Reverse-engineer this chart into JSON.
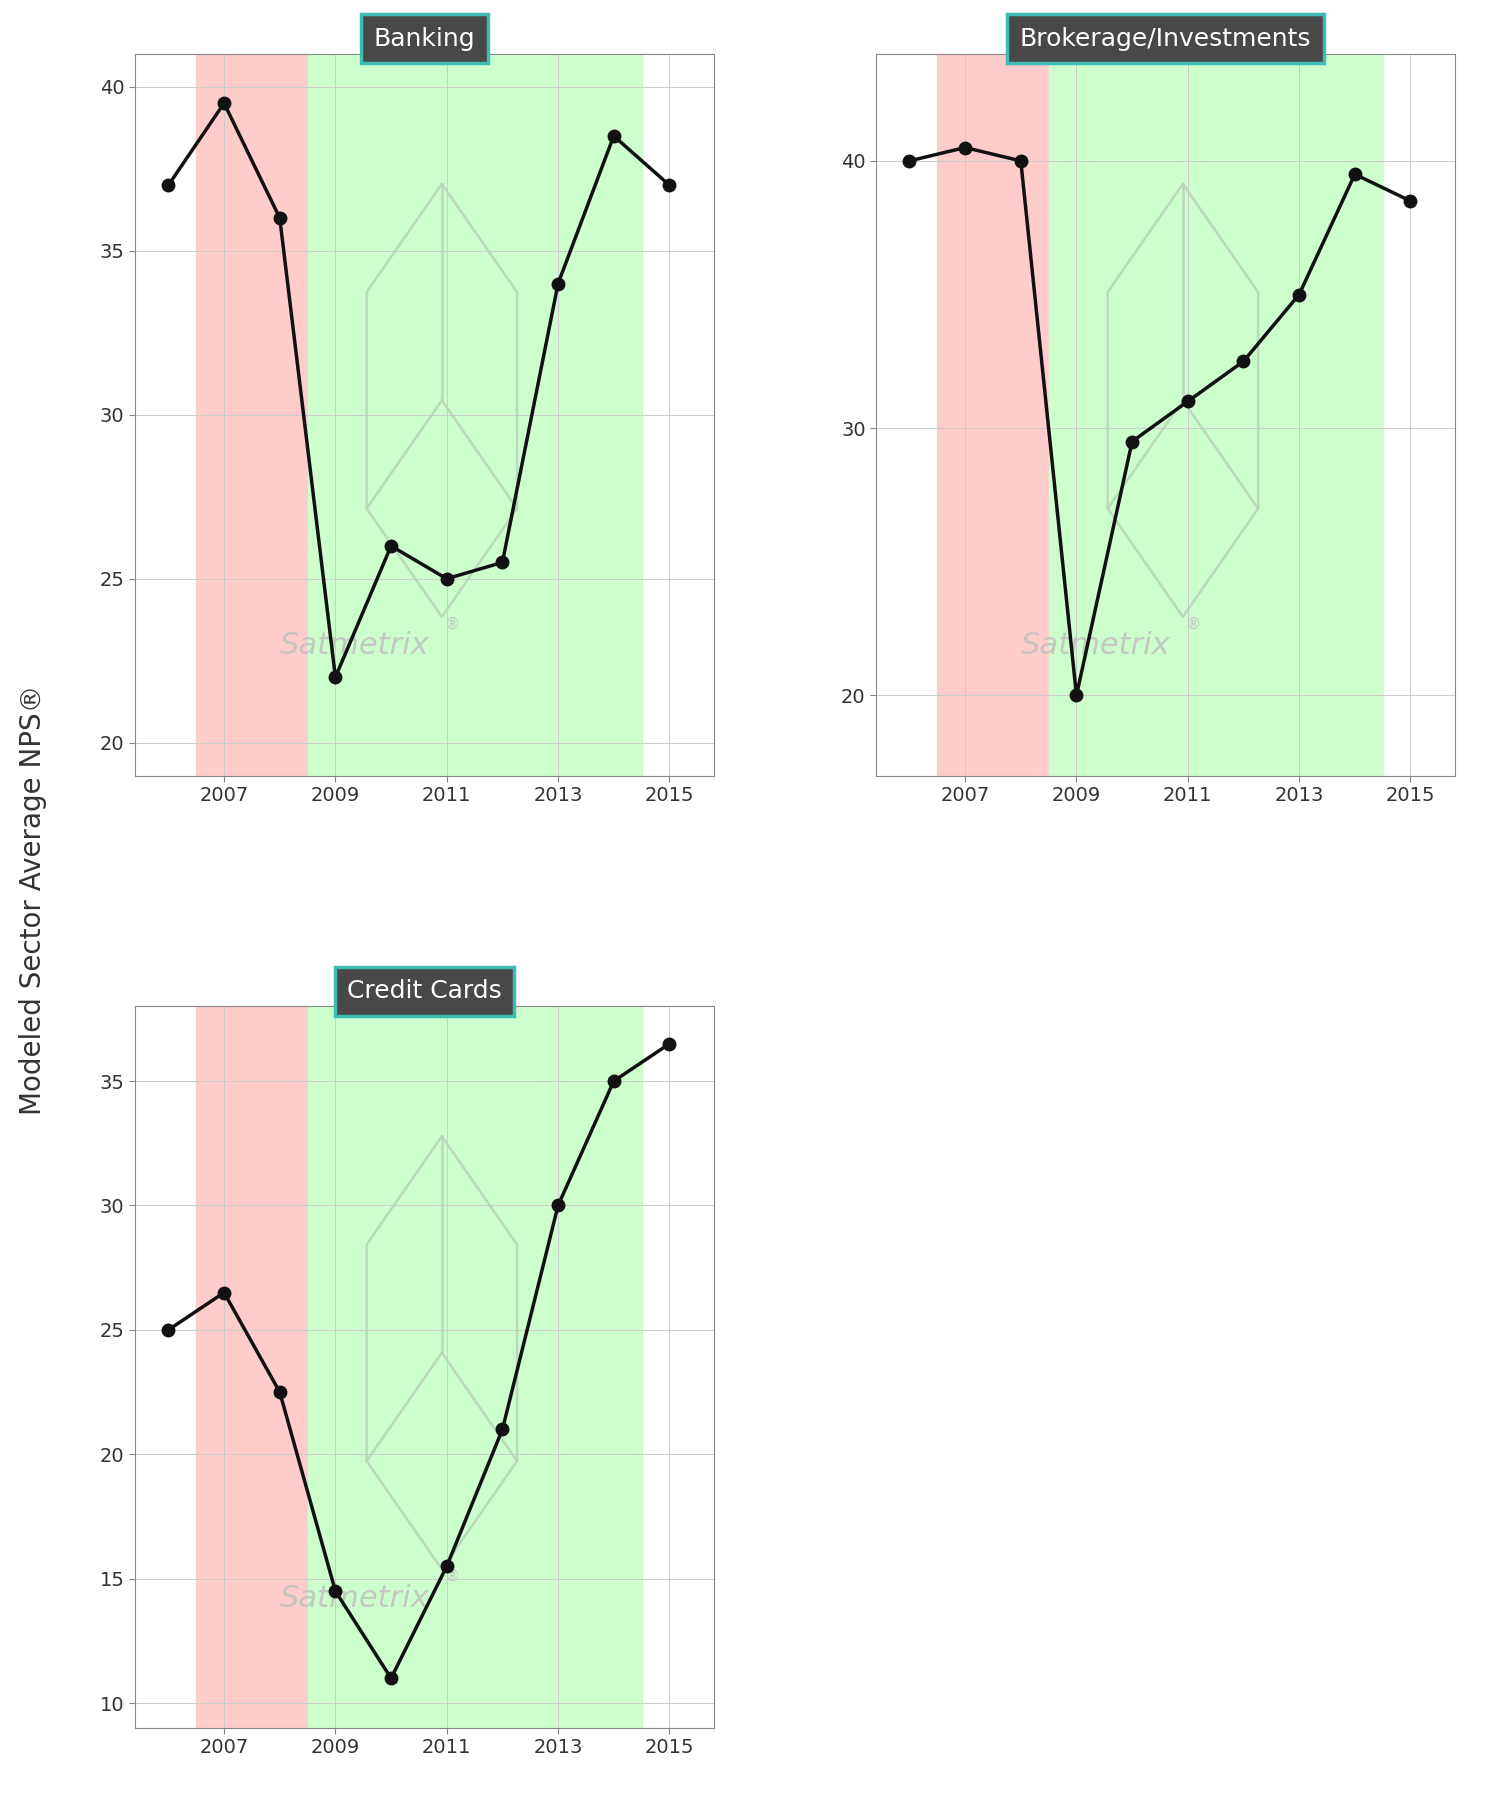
{
  "banking": {
    "years": [
      2006,
      2007,
      2008,
      2009,
      2010,
      2011,
      2012,
      2013,
      2014,
      2015
    ],
    "values": [
      37.0,
      39.5,
      36.0,
      22.0,
      26.0,
      25.0,
      25.5,
      34.0,
      38.5,
      37.0
    ],
    "ylim": [
      19,
      41
    ],
    "yticks": [
      20,
      25,
      30,
      35,
      40
    ],
    "title": "Banking",
    "red_xmin": 2006.5,
    "red_xmax": 2008.5,
    "green_xmin": 2008.5,
    "green_xmax": 2014.5
  },
  "brokerage": {
    "years": [
      2006,
      2007,
      2008,
      2009,
      2010,
      2011,
      2012,
      2013,
      2014,
      2015
    ],
    "values": [
      40.0,
      40.5,
      40.0,
      20.0,
      29.5,
      31.0,
      32.5,
      35.0,
      39.5,
      38.5
    ],
    "ylim": [
      17,
      44
    ],
    "yticks": [
      20,
      30,
      40
    ],
    "title": "Brokerage/Investments",
    "red_xmin": 2006.5,
    "red_xmax": 2008.5,
    "green_xmin": 2008.5,
    "green_xmax": 2014.5
  },
  "credit_cards": {
    "years": [
      2006,
      2007,
      2008,
      2009,
      2010,
      2011,
      2012,
      2013,
      2014,
      2015
    ],
    "values": [
      25.0,
      26.5,
      22.5,
      14.5,
      11.0,
      15.5,
      21.0,
      30.0,
      35.0,
      36.5
    ],
    "ylim": [
      9,
      38
    ],
    "yticks": [
      10,
      15,
      20,
      25,
      30,
      35
    ],
    "title": "Credit Cards",
    "red_xmin": 2006.5,
    "red_xmax": 2008.5,
    "green_xmin": 2008.5,
    "green_xmax": 2014.5
  },
  "red_color": "#FFCCCC",
  "green_color": "#CCFFCC",
  "line_color": "#111111",
  "marker_color": "#111111",
  "title_bg_color": "#484848",
  "title_text_color": "#FFFFFF",
  "title_border_color": "#3DBCB4",
  "axis_bg_color": "#FFFFFF",
  "grid_color": "#CCCCCC",
  "ylabel": "Modeled Sector Average NPS®",
  "xticks": [
    2007,
    2009,
    2011,
    2013,
    2015
  ],
  "xlim": [
    2005.4,
    2015.8
  ],
  "logo_line_color": "#B8D4B8",
  "watermark_text_color": "#C0C0C0"
}
